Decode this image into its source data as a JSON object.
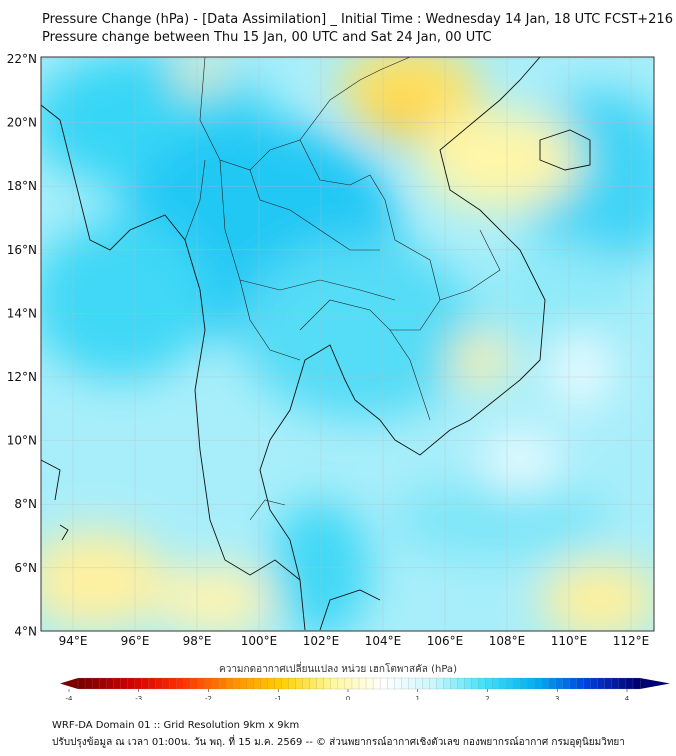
{
  "header": {
    "title_line1": "Pressure Change (hPa) - [Data Assimilation] _ Initial Time : Wednesday 14 Jan, 18 UTC FCST+216",
    "title_line2": "Pressure change between Thu 15 Jan, 00 UTC and Sat 24 Jan, 00 UTC"
  },
  "map": {
    "lat_labels": [
      "22°N",
      "20°N",
      "18°N",
      "16°N",
      "14°N",
      "12°N",
      "10°N",
      "8°N",
      "6°N",
      "4°N"
    ],
    "lon_labels": [
      "94°E",
      "96°E",
      "98°E",
      "100°E",
      "102°E",
      "104°E",
      "106°E",
      "108°E",
      "110°E",
      "112°E"
    ],
    "extent": {
      "lon": [
        93,
        112.7
      ],
      "lat": [
        4,
        22.2
      ]
    }
  },
  "colorbar": {
    "title": "ความกดอากาศเปลี่ยนแปลง หน่วย เฮกโตพาสคัล (hPa)",
    "ticks": [
      "-4",
      "-3",
      "-2",
      "-1",
      "0",
      "1",
      "2",
      "3",
      "4"
    ],
    "range": [
      -4,
      4
    ],
    "colors": [
      "#7a0000",
      "#d40000",
      "#ff3000",
      "#ff9000",
      "#ffd000",
      "#fff8a0",
      "#ffffff",
      "#c8f6fc",
      "#40e0f8",
      "#00b0f0",
      "#0040e0",
      "#000070"
    ]
  },
  "footer": {
    "line1": "WRF-DA Domain 01 :: Grid Resolution 9km x 9km",
    "line2": "ปรับปรุงข้อมูล ณ เวลา 01:00น. วัน พฤ. ที่ 15 ม.ค. 2569 -- © ส่วนพยากรณ์อากาศเชิงตัวเลข กองพยากรณ์อากาศ กรมอุตุนิยมวิทยา"
  }
}
